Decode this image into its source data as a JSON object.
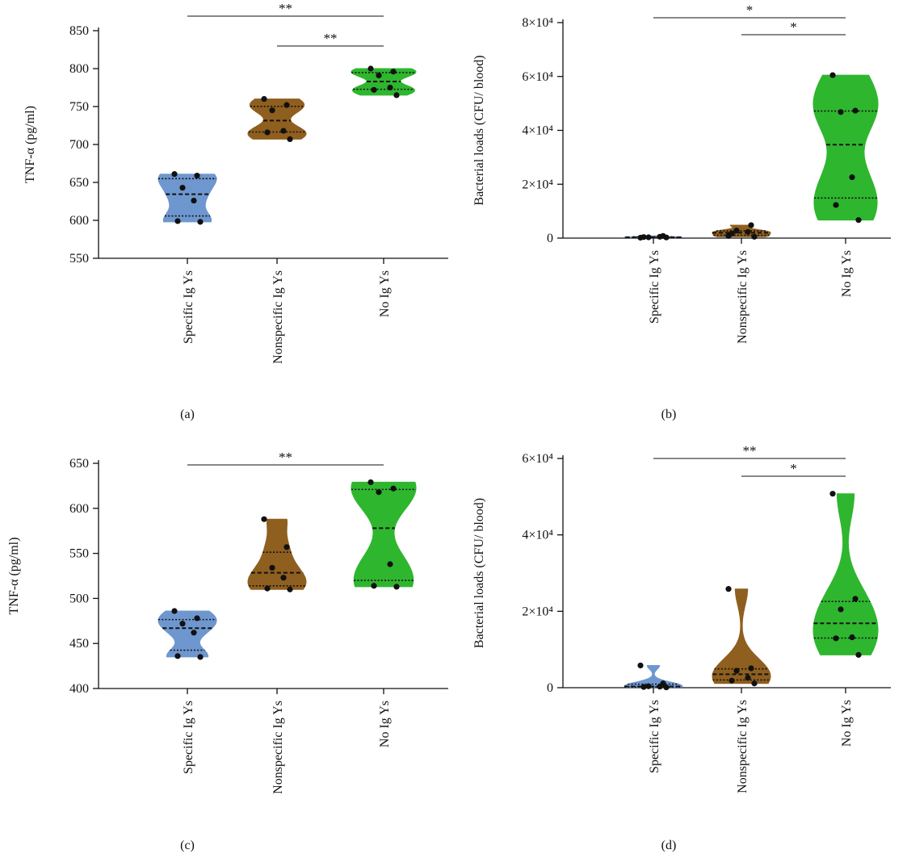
{
  "chart_data": [
    {
      "type": "violin",
      "panel_label": "(a)",
      "ylabel": "TNF-α (pg/ml)",
      "ylim": [
        550,
        850
      ],
      "y_ticks": [
        "550",
        "600",
        "650",
        "700",
        "750",
        "800",
        "850"
      ],
      "categories": [
        "Specific Ig Ys",
        "Nonspecific Ig Ys",
        "No Ig Ys"
      ],
      "colors": [
        "#6f97cf",
        "#8f5f1f",
        "#2fb62f"
      ],
      "series": [
        {
          "values": [
            661,
            659,
            643,
            626,
            599,
            598
          ]
        },
        {
          "values": [
            760,
            752,
            745,
            718,
            716,
            707
          ]
        },
        {
          "values": [
            800,
            796,
            791,
            775,
            772,
            765
          ]
        }
      ],
      "annotations": [
        {
          "from": 0,
          "to": 2,
          "label": "**"
        },
        {
          "from": 1,
          "to": 2,
          "label": "**"
        }
      ]
    },
    {
      "type": "violin",
      "panel_label": "(b)",
      "ylabel": "Bacterial loads (CFU/ blood)",
      "ylim": [
        0,
        80000
      ],
      "y_ticks": [
        "0",
        "2×10⁴",
        "4×10⁴",
        "6×10⁴",
        "8×10⁴"
      ],
      "categories": [
        "Specific Ig Ys",
        "Nonspecific Ig Ys",
        "No Ig Ys"
      ],
      "colors": [
        "#6f97cf",
        "#8f5f1f",
        "#2fb62f"
      ],
      "series": [
        {
          "values": [
            150,
            800,
            300,
            500,
            400,
            250
          ]
        },
        {
          "values": [
            800,
            4800,
            2800,
            2300,
            1700,
            500
          ]
        },
        {
          "values": [
            60500,
            47300,
            46800,
            22600,
            12300,
            6700
          ]
        }
      ],
      "annotations": [
        {
          "from": 0,
          "to": 2,
          "label": "*"
        },
        {
          "from": 1,
          "to": 2,
          "label": "*"
        }
      ]
    },
    {
      "type": "violin",
      "panel_label": "(c)",
      "ylabel": "TNF-α (pg/ml)",
      "ylim": [
        400,
        650
      ],
      "y_ticks": [
        "400",
        "450",
        "500",
        "550",
        "600",
        "650"
      ],
      "categories": [
        "Specific Ig Ys",
        "Nonspecific Ig Ys",
        "No Ig Ys"
      ],
      "colors": [
        "#6f97cf",
        "#8f5f1f",
        "#2fb62f"
      ],
      "series": [
        {
          "values": [
            486,
            478,
            472,
            462,
            436,
            435
          ]
        },
        {
          "values": [
            588,
            557,
            534,
            523,
            511,
            510
          ]
        },
        {
          "values": [
            629,
            622,
            618,
            538,
            514,
            513
          ]
        }
      ],
      "annotations": [
        {
          "from": 0,
          "to": 2,
          "label": "**"
        }
      ]
    },
    {
      "type": "violin",
      "panel_label": "(d)",
      "ylabel": "Bacterial loads (CFU/ blood)",
      "ylim": [
        0,
        65000
      ],
      "y_ticks": [
        "0",
        "2×10⁴",
        "4×10⁴",
        "6×10⁴"
      ],
      "categories": [
        "Specific Ig Ys",
        "Nonspecific Ig Ys",
        "No Ig Ys"
      ],
      "colors": [
        "#6f97cf",
        "#8f5f1f",
        "#2fb62f"
      ],
      "series": [
        {
          "values": [
            6300,
            1200,
            400,
            300,
            200,
            100
          ]
        },
        {
          "values": [
            28000,
            5500,
            4800,
            2800,
            2000,
            1200
          ]
        },
        {
          "values": [
            55000,
            25200,
            22200,
            14300,
            14000,
            9300
          ]
        }
      ],
      "annotations": [
        {
          "from": 0,
          "to": 2,
          "label": "**"
        },
        {
          "from": 1,
          "to": 2,
          "label": "*"
        }
      ]
    }
  ]
}
